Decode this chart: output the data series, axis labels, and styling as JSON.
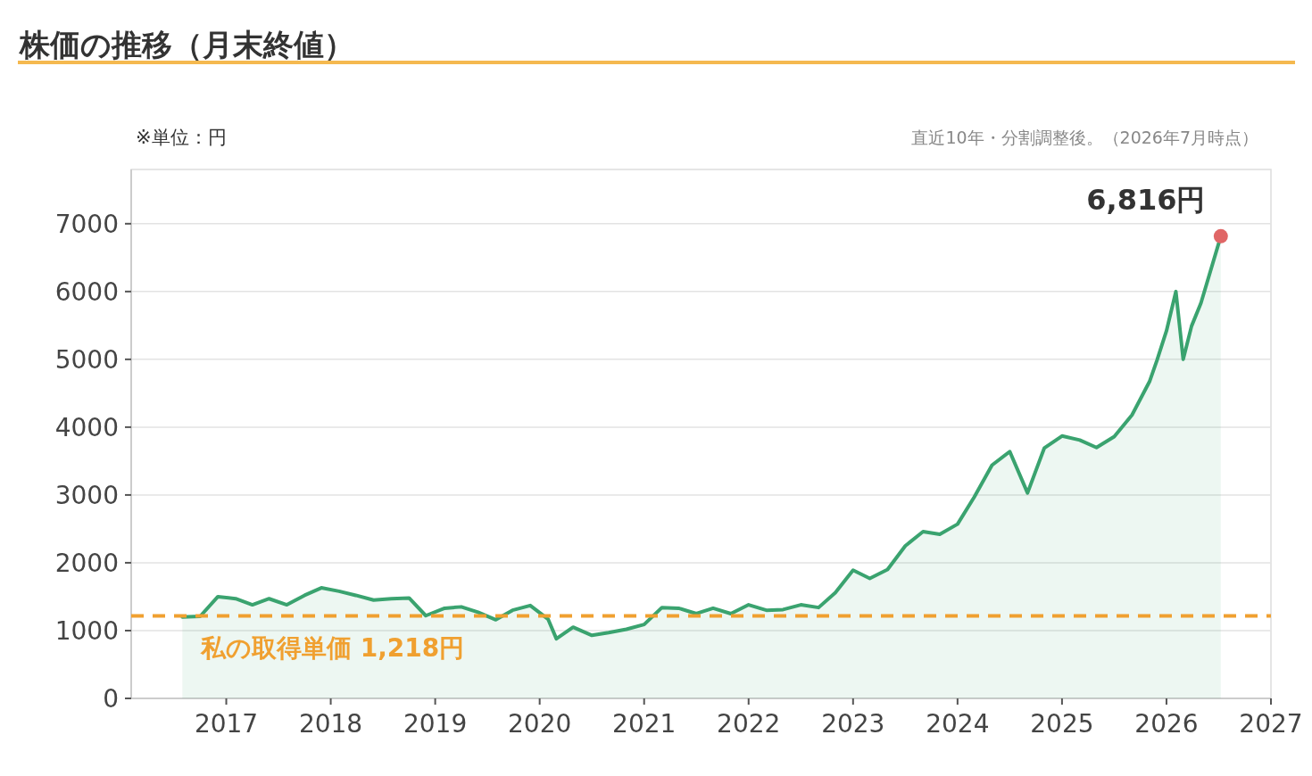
{
  "chart_data": {
    "type": "area",
    "title": "株価の推移（月末終値）",
    "ylabel": "※単位：円",
    "annotations": [
      "直近10年・分割調整後。（2026年7月時点）",
      {
        "text": "6,816円",
        "x": 2026.52,
        "y": 6816
      }
    ],
    "x": [
      2016.58,
      2016.75,
      2016.92,
      2017.09,
      2017.25,
      2017.41,
      2017.58,
      2017.75,
      2017.91,
      2018.08,
      2018.24,
      2018.41,
      2018.58,
      2018.75,
      2018.91,
      2019.09,
      2019.25,
      2019.41,
      2019.58,
      2019.74,
      2019.91,
      2020.08,
      2020.16,
      2020.32,
      2020.5,
      2020.66,
      2020.83,
      2021.0,
      2021.17,
      2021.33,
      2021.5,
      2021.66,
      2021.83,
      2022.0,
      2022.17,
      2022.33,
      2022.5,
      2022.67,
      2022.83,
      2023.0,
      2023.16,
      2023.33,
      2023.5,
      2023.67,
      2023.83,
      2024.0,
      2024.16,
      2024.33,
      2024.5,
      2024.67,
      2024.83,
      2025.0,
      2025.17,
      2025.33,
      2025.5,
      2025.67,
      2025.84,
      2025.91,
      2026.0,
      2026.09,
      2026.16,
      2026.24,
      2026.33,
      2026.52
    ],
    "series": [
      {
        "color": "#3aa36f",
        "values": [
          1200,
          1210,
          1500,
          1470,
          1380,
          1470,
          1380,
          1520,
          1630,
          1580,
          1520,
          1450,
          1470,
          1480,
          1220,
          1330,
          1350,
          1270,
          1160,
          1300,
          1370,
          1170,
          880,
          1050,
          930,
          970,
          1020,
          1090,
          1340,
          1330,
          1250,
          1330,
          1250,
          1380,
          1300,
          1310,
          1380,
          1340,
          1560,
          1890,
          1770,
          1900,
          2250,
          2460,
          2420,
          2570,
          2970,
          3440,
          3640,
          3030,
          3690,
          3870,
          3810,
          3700,
          3860,
          4180,
          4680,
          4990,
          5420,
          6000,
          5000,
          5490,
          5830,
          6816
        ]
      }
    ],
    "ref_lines": [
      {
        "axis": "y",
        "value": 1218,
        "label": "私の取得単価 1,218円",
        "color": "#f0a030",
        "line_style": "dashed"
      }
    ],
    "xlim": [
      2016.09,
      2027
    ],
    "xticks": [
      2017,
      2018,
      2019,
      2020,
      2021,
      2022,
      2023,
      2024,
      2025,
      2026,
      2027
    ],
    "ylim": [
      0,
      7800
    ],
    "yticks": [
      0,
      1000,
      2000,
      3000,
      4000,
      5000,
      6000,
      7000
    ],
    "grid": "y",
    "marker": "none"
  }
}
